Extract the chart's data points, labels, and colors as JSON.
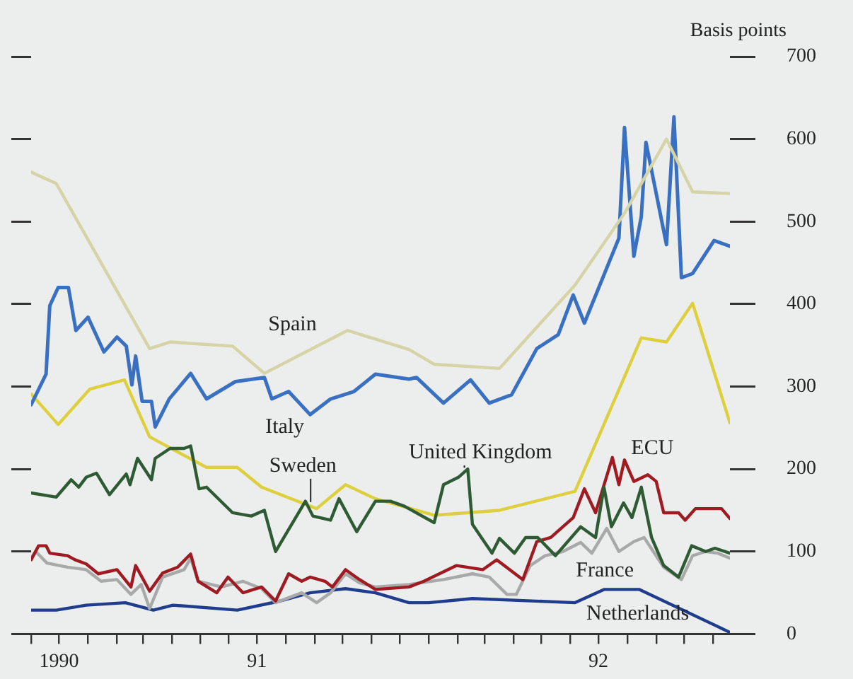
{
  "chart_data": {
    "type": "line",
    "ylabel": "Basis points",
    "xlim": [
      "1990-11-01",
      "1992-11-19"
    ],
    "xticks": [
      {
        "value": "1990-11-01",
        "label": null
      },
      {
        "value": "1990-12-01",
        "label": "1990"
      },
      {
        "value": "1991-01-01",
        "label": null
      },
      {
        "value": "1991-02-01",
        "label": null
      },
      {
        "value": "1991-03-01",
        "label": null
      },
      {
        "value": "1991-04-01",
        "label": null
      },
      {
        "value": "1991-05-01",
        "label": null
      },
      {
        "value": "1991-06-01",
        "label": null
      },
      {
        "value": "1991-07-01",
        "label": "91"
      },
      {
        "value": "1991-08-01",
        "label": null
      },
      {
        "value": "1991-09-01",
        "label": null
      },
      {
        "value": "1991-10-01",
        "label": null
      },
      {
        "value": "1991-11-01",
        "label": null
      },
      {
        "value": "1991-12-01",
        "label": null
      },
      {
        "value": "1992-01-01",
        "label": null
      },
      {
        "value": "1992-02-01",
        "label": null
      },
      {
        "value": "1992-03-01",
        "label": null
      },
      {
        "value": "1992-04-01",
        "label": null
      },
      {
        "value": "1992-05-01",
        "label": null
      },
      {
        "value": "1992-06-01",
        "label": null
      },
      {
        "value": "1992-07-01",
        "label": "92"
      },
      {
        "value": "1992-08-01",
        "label": null
      },
      {
        "value": "1992-09-01",
        "label": null
      },
      {
        "value": "1992-10-01",
        "label": null
      },
      {
        "value": "1992-11-01",
        "label": null
      }
    ],
    "ylim": [
      0,
      700
    ],
    "yticks": [
      0,
      100,
      200,
      300,
      400,
      500,
      600,
      700
    ],
    "grid": false,
    "legend": false,
    "marker": "none",
    "line_style": "solid",
    "series": [
      {
        "name": "Spain",
        "color": "#d6d3a6",
        "x": [
          "1990-11-01",
          "1990-11-28",
          "1991-03-08",
          "1991-03-30",
          "1991-06-05",
          "1991-07-09",
          "1991-10-06",
          "1991-12-11",
          "1992-01-07",
          "1992-03-17",
          "1992-06-06",
          "1992-07-29",
          "1992-09-12",
          "1992-10-10",
          "1992-11-19"
        ],
        "values": [
          560,
          546,
          346,
          354,
          349,
          316,
          368,
          345,
          327,
          322,
          423,
          510,
          600,
          536,
          534
        ]
      },
      {
        "name": "Italy",
        "color": "#3a70c2",
        "x": [
          "1990-11-01",
          "1990-11-17",
          "1990-11-21",
          "1990-11-30",
          "1990-12-11",
          "1990-12-19",
          "1991-01-01",
          "1991-01-18",
          "1991-02-01",
          "1991-02-11",
          "1991-02-17",
          "1991-02-21",
          "1991-02-28",
          "1991-03-10",
          "1991-03-14",
          "1991-03-29",
          "1991-04-21",
          "1991-05-08",
          "1991-06-08",
          "1991-07-09",
          "1991-07-17",
          "1991-08-04",
          "1991-08-27",
          "1991-09-18",
          "1991-10-13",
          "1991-11-05",
          "1991-12-11",
          "1991-12-19",
          "1992-01-17",
          "1992-02-15",
          "1992-03-06",
          "1992-03-30",
          "1992-04-26",
          "1992-05-19",
          "1992-06-04",
          "1992-06-16",
          "1992-07-23",
          "1992-07-29",
          "1992-08-08",
          "1992-08-16",
          "1992-08-21",
          "1992-09-12",
          "1992-09-20",
          "1992-09-28",
          "1992-10-10",
          "1992-11-02",
          "1992-11-19"
        ],
        "values": [
          278,
          315,
          398,
          420,
          420,
          368,
          384,
          342,
          360,
          349,
          302,
          337,
          282,
          282,
          251,
          285,
          316,
          285,
          306,
          311,
          285,
          294,
          266,
          285,
          294,
          315,
          309,
          311,
          280,
          308,
          280,
          290,
          346,
          363,
          411,
          377,
          480,
          614,
          458,
          506,
          596,
          472,
          627,
          432,
          437,
          477,
          470
        ]
      },
      {
        "name": "United Kingdom",
        "color": "#2e5a34",
        "x": [
          "1990-11-01",
          "1990-11-28",
          "1990-12-14",
          "1990-12-22",
          "1990-12-30",
          "1991-01-10",
          "1991-01-24",
          "1991-02-11",
          "1991-02-15",
          "1991-02-23",
          "1991-03-10",
          "1991-03-14",
          "1991-03-30",
          "1991-04-14",
          "1991-04-21",
          "1991-04-30",
          "1991-05-08",
          "1991-06-05",
          "1991-06-25",
          "1991-07-09",
          "1991-07-21",
          "1991-08-22",
          "1991-08-30",
          "1991-09-18",
          "1991-09-27",
          "1991-10-16",
          "1991-11-05",
          "1991-11-21",
          "1991-12-06",
          "1992-01-07",
          "1992-01-17",
          "1992-02-02",
          "1992-02-12",
          "1992-02-17",
          "1992-03-09",
          "1992-03-17",
          "1992-04-02",
          "1992-04-14",
          "1992-04-27",
          "1992-05-16",
          "1992-06-12",
          "1992-06-28",
          "1992-07-07",
          "1992-07-15",
          "1992-07-28",
          "1992-08-06",
          "1992-08-16",
          "1992-08-27",
          "1992-09-09",
          "1992-09-25",
          "1992-10-09",
          "1992-10-24",
          "1992-11-03",
          "1992-11-19"
        ],
        "values": [
          171,
          166,
          187,
          178,
          190,
          195,
          169,
          194,
          181,
          213,
          187,
          213,
          225,
          225,
          228,
          176,
          178,
          147,
          143,
          150,
          100,
          161,
          143,
          138,
          164,
          124,
          161,
          161,
          155,
          135,
          181,
          190,
          200,
          133,
          98,
          116,
          98,
          117,
          117,
          95,
          130,
          117,
          178,
          130,
          159,
          141,
          178,
          117,
          83,
          69,
          107,
          100,
          104,
          98
        ]
      },
      {
        "name": "Sweden",
        "color": "#ddcf3e",
        "x": [
          "1990-11-01",
          "1990-11-30",
          "1991-01-03",
          "1991-02-09",
          "1991-03-08",
          "1991-05-08",
          "1991-06-10",
          "1991-07-06",
          "1991-09-03",
          "1991-10-04",
          "1991-11-05",
          "1992-01-07",
          "1992-03-17",
          "1992-06-06",
          "1992-08-16",
          "1992-09-12",
          "1992-10-10",
          "1992-11-19"
        ],
        "values": [
          291,
          254,
          297,
          308,
          239,
          202,
          202,
          178,
          152,
          181,
          164,
          144,
          150,
          173,
          359,
          354,
          401,
          256
        ]
      },
      {
        "name": "ECU",
        "color": "#a01a22",
        "x": [
          "1990-11-01",
          "1990-11-09",
          "1990-11-17",
          "1990-11-21",
          "1990-12-10",
          "1990-12-18",
          "1990-12-30",
          "1991-01-12",
          "1991-02-01",
          "1991-02-16",
          "1991-02-21",
          "1991-03-08",
          "1991-03-22",
          "1991-04-07",
          "1991-04-21",
          "1991-04-29",
          "1991-05-19",
          "1991-05-31",
          "1991-06-16",
          "1991-07-06",
          "1991-07-21",
          "1991-08-04",
          "1991-08-18",
          "1991-08-27",
          "1991-09-12",
          "1991-09-20",
          "1991-10-04",
          "1991-10-19",
          "1991-11-05",
          "1991-12-11",
          "1991-12-27",
          "1992-01-31",
          "1992-02-28",
          "1992-03-14",
          "1992-04-11",
          "1992-04-26",
          "1992-05-11",
          "1992-06-04",
          "1992-06-16",
          "1992-06-28",
          "1992-07-16",
          "1992-07-23",
          "1992-07-29",
          "1992-08-08",
          "1992-08-23",
          "1992-09-01",
          "1992-09-09",
          "1992-09-25",
          "1992-10-02",
          "1992-10-13",
          "1992-11-10",
          "1992-11-19"
        ],
        "values": [
          90,
          107,
          107,
          98,
          95,
          90,
          85,
          73,
          78,
          57,
          83,
          52,
          74,
          81,
          97,
          64,
          50,
          69,
          50,
          57,
          40,
          73,
          64,
          69,
          64,
          57,
          78,
          66,
          54,
          57,
          64,
          83,
          78,
          90,
          66,
          112,
          117,
          141,
          176,
          147,
          214,
          181,
          211,
          185,
          193,
          185,
          147,
          147,
          138,
          152,
          152,
          140
        ]
      },
      {
        "name": "France",
        "color": "#a9a9a9",
        "x": [
          "1990-11-01",
          "1990-11-06",
          "1990-11-18",
          "1990-12-10",
          "1990-12-30",
          "1991-01-15",
          "1991-02-01",
          "1991-02-16",
          "1991-02-27",
          "1991-03-08",
          "1991-03-22",
          "1991-04-14",
          "1991-04-21",
          "1991-04-29",
          "1991-05-24",
          "1991-06-16",
          "1991-07-06",
          "1991-07-21",
          "1991-08-18",
          "1991-09-03",
          "1991-09-18",
          "1991-10-04",
          "1991-10-19",
          "1991-11-05",
          "1991-12-11",
          "1992-01-17",
          "1992-02-17",
          "1992-03-06",
          "1992-03-25",
          "1992-04-04",
          "1992-04-19",
          "1992-05-05",
          "1992-05-24",
          "1992-06-12",
          "1992-06-24",
          "1992-07-10",
          "1992-07-23",
          "1992-08-08",
          "1992-08-19",
          "1992-09-09",
          "1992-09-28",
          "1992-10-10",
          "1992-10-24",
          "1992-11-06",
          "1992-11-19"
        ],
        "values": [
          92,
          100,
          86,
          81,
          78,
          64,
          66,
          48,
          60,
          31,
          69,
          78,
          92,
          64,
          57,
          64,
          55,
          38,
          50,
          38,
          50,
          73,
          62,
          57,
          60,
          66,
          73,
          69,
          48,
          48,
          83,
          95,
          100,
          111,
          98,
          128,
          100,
          112,
          117,
          81,
          66,
          95,
          100,
          98,
          92
        ]
      },
      {
        "name": "Netherlands",
        "color": "#1f3d8c",
        "x": [
          "1990-11-01",
          "1990-11-28",
          "1990-12-30",
          "1991-02-10",
          "1991-03-12",
          "1991-04-02",
          "1991-06-10",
          "1991-07-26",
          "1991-08-27",
          "1991-10-04",
          "1991-11-05",
          "1991-12-11",
          "1992-01-01",
          "1992-02-17",
          "1992-06-06",
          "1992-07-07",
          "1992-08-14",
          "1992-11-19"
        ],
        "values": [
          29,
          29,
          35,
          38,
          29,
          35,
          29,
          40,
          50,
          55,
          50,
          38,
          38,
          43,
          38,
          54,
          54,
          2
        ]
      }
    ]
  }
}
